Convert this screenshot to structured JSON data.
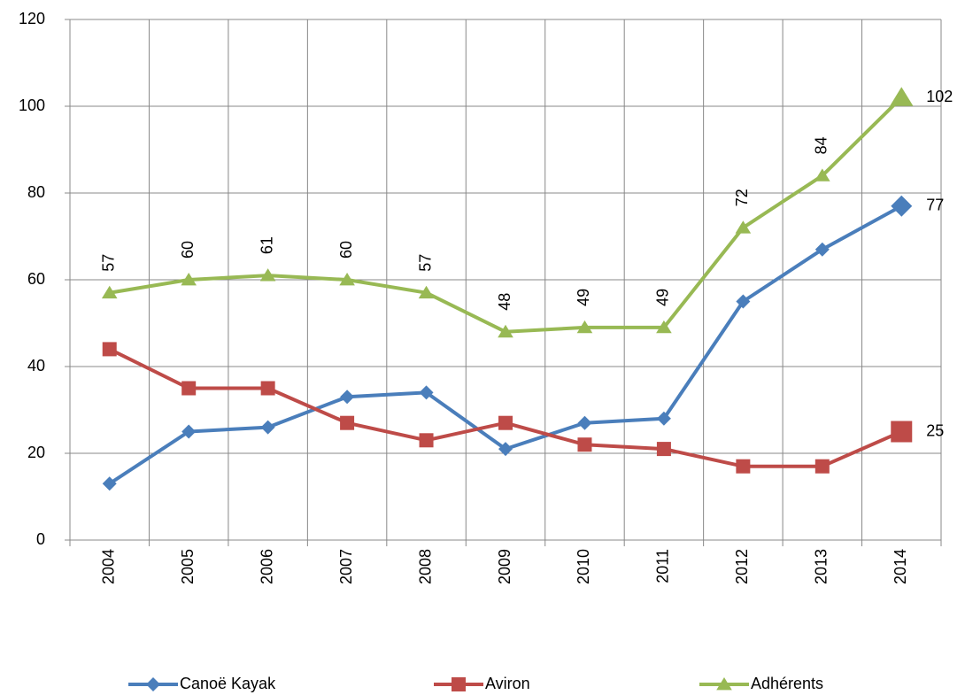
{
  "chart_data": {
    "type": "line",
    "categories": [
      "2004",
      "2005",
      "2006",
      "2007",
      "2008",
      "2009",
      "2010",
      "2011",
      "2012",
      "2013",
      "2014"
    ],
    "series": [
      {
        "name": "Canoë Kayak",
        "color": "#4a7ebb",
        "marker": "diamond",
        "data_labels": "last",
        "values": [
          13,
          25,
          26,
          33,
          34,
          21,
          27,
          28,
          55,
          67,
          77
        ]
      },
      {
        "name": "Aviron",
        "color": "#be4b48",
        "marker": "square",
        "data_labels": "last",
        "values": [
          44,
          35,
          35,
          27,
          23,
          27,
          22,
          21,
          17,
          17,
          25
        ]
      },
      {
        "name": "Adhérents",
        "color": "#98b954",
        "marker": "triangle",
        "data_labels": "all",
        "values": [
          57,
          60,
          61,
          60,
          57,
          48,
          49,
          49,
          72,
          84,
          102
        ]
      }
    ],
    "ylim": [
      0,
      120
    ],
    "yticks": [
      0,
      20,
      40,
      60,
      80,
      100,
      120
    ],
    "grid": true,
    "legend": "bottom"
  }
}
